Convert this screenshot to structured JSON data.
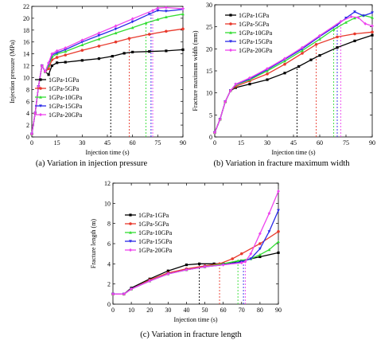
{
  "captions": [
    "(a) Variation in injection pressure",
    "(b) Variation in fracture maximum width",
    "(c) Variation in fracture length"
  ],
  "series_colors": [
    "#000000",
    "#e8392c",
    "#33dd33",
    "#2a2ae8",
    "#ee44ee"
  ],
  "chart_data": [
    {
      "type": "line",
      "xlabel": "Injection time (s)",
      "ylabel": "Injection pressure (MPa)",
      "xlim": [
        0,
        90
      ],
      "ylim": [
        0,
        22
      ],
      "xticks": [
        0,
        15,
        30,
        45,
        60,
        75,
        90
      ],
      "yticks": [
        0,
        2,
        4,
        6,
        8,
        10,
        12,
        14,
        16,
        18,
        20,
        22
      ],
      "legend_position": "bottom-left",
      "series": [
        {
          "name": "1GPa-1GPa",
          "x": [
            0,
            2,
            4,
            6,
            8,
            10,
            12,
            15,
            20,
            30,
            40,
            48,
            55,
            60,
            70,
            80,
            90
          ],
          "y": [
            0.5,
            4,
            8.5,
            12,
            11,
            10.5,
            12,
            12.5,
            12.6,
            12.9,
            13.2,
            13.6,
            14.1,
            14.3,
            14.4,
            14.5,
            14.7
          ]
        },
        {
          "name": "1GPa-5GPa",
          "x": [
            0,
            2,
            4,
            6,
            8,
            10,
            12,
            15,
            20,
            30,
            40,
            50,
            58,
            70,
            80,
            90
          ],
          "y": [
            0.5,
            4,
            8.5,
            12,
            11,
            11.5,
            13,
            13.4,
            13.8,
            14.6,
            15.3,
            16,
            16.6,
            17.3,
            17.8,
            18.2
          ]
        },
        {
          "name": "1GPa-10GPa",
          "x": [
            0,
            2,
            4,
            6,
            8,
            10,
            12,
            15,
            20,
            30,
            40,
            50,
            60,
            68,
            75,
            80,
            90
          ],
          "y": [
            0.5,
            4,
            8.5,
            12,
            11,
            12,
            13.5,
            14,
            14.4,
            15.5,
            16.5,
            17.5,
            18.4,
            19.2,
            19.8,
            20.2,
            20.7
          ]
        },
        {
          "name": "1GPa-15GPa",
          "x": [
            0,
            2,
            4,
            6,
            8,
            10,
            12,
            15,
            20,
            30,
            40,
            50,
            60,
            70,
            75,
            80,
            90
          ],
          "y": [
            0.5,
            4,
            8.5,
            12,
            11,
            12.3,
            13.8,
            14.2,
            14.7,
            16,
            17.1,
            18.2,
            19.4,
            20.7,
            21.3,
            21.2,
            21.5
          ]
        },
        {
          "name": "1GPa-20GPa",
          "x": [
            0,
            2,
            4,
            6,
            8,
            10,
            12,
            15,
            20,
            30,
            40,
            50,
            60,
            72,
            75,
            80,
            90
          ],
          "y": [
            0.5,
            4,
            8.5,
            12,
            11,
            12.5,
            14,
            14.5,
            15,
            16.3,
            17.5,
            18.7,
            19.9,
            21.3,
            21.7,
            21.8,
            21.6
          ]
        }
      ],
      "markers_x": [
        47,
        58,
        68,
        71,
        72
      ]
    },
    {
      "type": "line",
      "xlabel": "Injection time (s)",
      "ylabel": "Fracture maximum width (mm)",
      "xlim": [
        0,
        90
      ],
      "ylim": [
        0,
        30
      ],
      "xticks": [
        0,
        15,
        30,
        45,
        60,
        75,
        90
      ],
      "yticks": [
        0,
        5,
        10,
        15,
        20,
        25,
        30
      ],
      "legend_position": "top-left",
      "series": [
        {
          "name": "1GPa-1GPa",
          "x": [
            0,
            3,
            6,
            9,
            12,
            20,
            30,
            40,
            48,
            55,
            60,
            70,
            80,
            90
          ],
          "y": [
            1,
            4,
            8,
            10.5,
            11.2,
            12,
            13,
            14.5,
            16,
            17.5,
            18.5,
            20.3,
            21.8,
            23.1
          ]
        },
        {
          "name": "1GPa-5GPa",
          "x": [
            0,
            3,
            6,
            9,
            12,
            20,
            30,
            40,
            50,
            58,
            70,
            80,
            90
          ],
          "y": [
            1,
            4,
            8,
            10.5,
            11.5,
            12.7,
            14.3,
            16.5,
            19,
            21,
            22.7,
            23.4,
            23.8
          ]
        },
        {
          "name": "1GPa-10GPa",
          "x": [
            0,
            3,
            6,
            9,
            12,
            20,
            30,
            40,
            50,
            60,
            68,
            75,
            80,
            85,
            90
          ],
          "y": [
            1,
            4,
            8,
            10.5,
            11.8,
            13,
            15,
            17.2,
            19.6,
            22.2,
            24.4,
            26,
            27,
            27.6,
            27.1
          ]
        },
        {
          "name": "1GPa-15GPa",
          "x": [
            0,
            3,
            6,
            9,
            12,
            20,
            30,
            40,
            50,
            60,
            70,
            75,
            80,
            85,
            90
          ],
          "y": [
            1,
            4,
            8,
            10.5,
            11.9,
            13.2,
            15.3,
            17.6,
            20,
            22.8,
            25.4,
            27,
            28.4,
            27.5,
            28.2
          ]
        },
        {
          "name": "1GPa-20GPa",
          "x": [
            0,
            3,
            6,
            9,
            12,
            20,
            30,
            40,
            50,
            60,
            72,
            78,
            82,
            86,
            90
          ],
          "y": [
            1,
            4,
            8,
            10.5,
            12,
            13.4,
            15.5,
            17.8,
            20.3,
            23,
            26.2,
            27.3,
            27.1,
            25.7,
            25.2
          ]
        }
      ],
      "markers_x": [
        47,
        58,
        68,
        70,
        72
      ]
    },
    {
      "type": "line",
      "xlabel": "Injection time (s)",
      "ylabel": "Fracture length (m)",
      "xlim": [
        0,
        90
      ],
      "ylim": [
        0,
        12
      ],
      "xticks": [
        0,
        10,
        20,
        30,
        40,
        50,
        60,
        70,
        80,
        90
      ],
      "yticks": [
        0,
        2,
        4,
        6,
        8,
        10,
        12
      ],
      "legend_position": "top-left",
      "series": [
        {
          "name": "1GPa-1GPa",
          "x": [
            0,
            6,
            10,
            20,
            30,
            40,
            47,
            55,
            60,
            70,
            80,
            90
          ],
          "y": [
            1,
            1,
            1.6,
            2.5,
            3.3,
            3.9,
            4,
            4,
            4,
            4.3,
            4.7,
            5.1
          ]
        },
        {
          "name": "1GPa-5GPa",
          "x": [
            0,
            6,
            10,
            20,
            30,
            40,
            50,
            58,
            65,
            70,
            80,
            90
          ],
          "y": [
            1,
            1,
            1.5,
            2.4,
            3.1,
            3.5,
            3.8,
            4,
            4.5,
            5,
            6,
            7.2
          ]
        },
        {
          "name": "1GPa-10GPa",
          "x": [
            0,
            6,
            10,
            20,
            30,
            40,
            50,
            60,
            68,
            75,
            80,
            85,
            90
          ],
          "y": [
            1,
            1,
            1.5,
            2.3,
            3.0,
            3.4,
            3.7,
            4,
            4.3,
            4.5,
            4.9,
            5.4,
            6.2
          ]
        },
        {
          "name": "1GPa-15GPa",
          "x": [
            0,
            6,
            10,
            20,
            30,
            40,
            50,
            60,
            70,
            75,
            80,
            85,
            90
          ],
          "y": [
            1,
            1,
            1.5,
            2.3,
            3.0,
            3.4,
            3.7,
            3.9,
            4.2,
            4.5,
            5.5,
            7.2,
            9.3
          ]
        },
        {
          "name": "1GPa-20GPa",
          "x": [
            0,
            6,
            10,
            20,
            30,
            40,
            50,
            60,
            70,
            72,
            75,
            80,
            85,
            90
          ],
          "y": [
            1,
            1,
            1.5,
            2.3,
            3.0,
            3.4,
            3.7,
            3.9,
            4.1,
            4.2,
            5,
            7,
            9,
            11.2
          ]
        }
      ],
      "markers_x": [
        47,
        58,
        68,
        71,
        72
      ]
    }
  ]
}
